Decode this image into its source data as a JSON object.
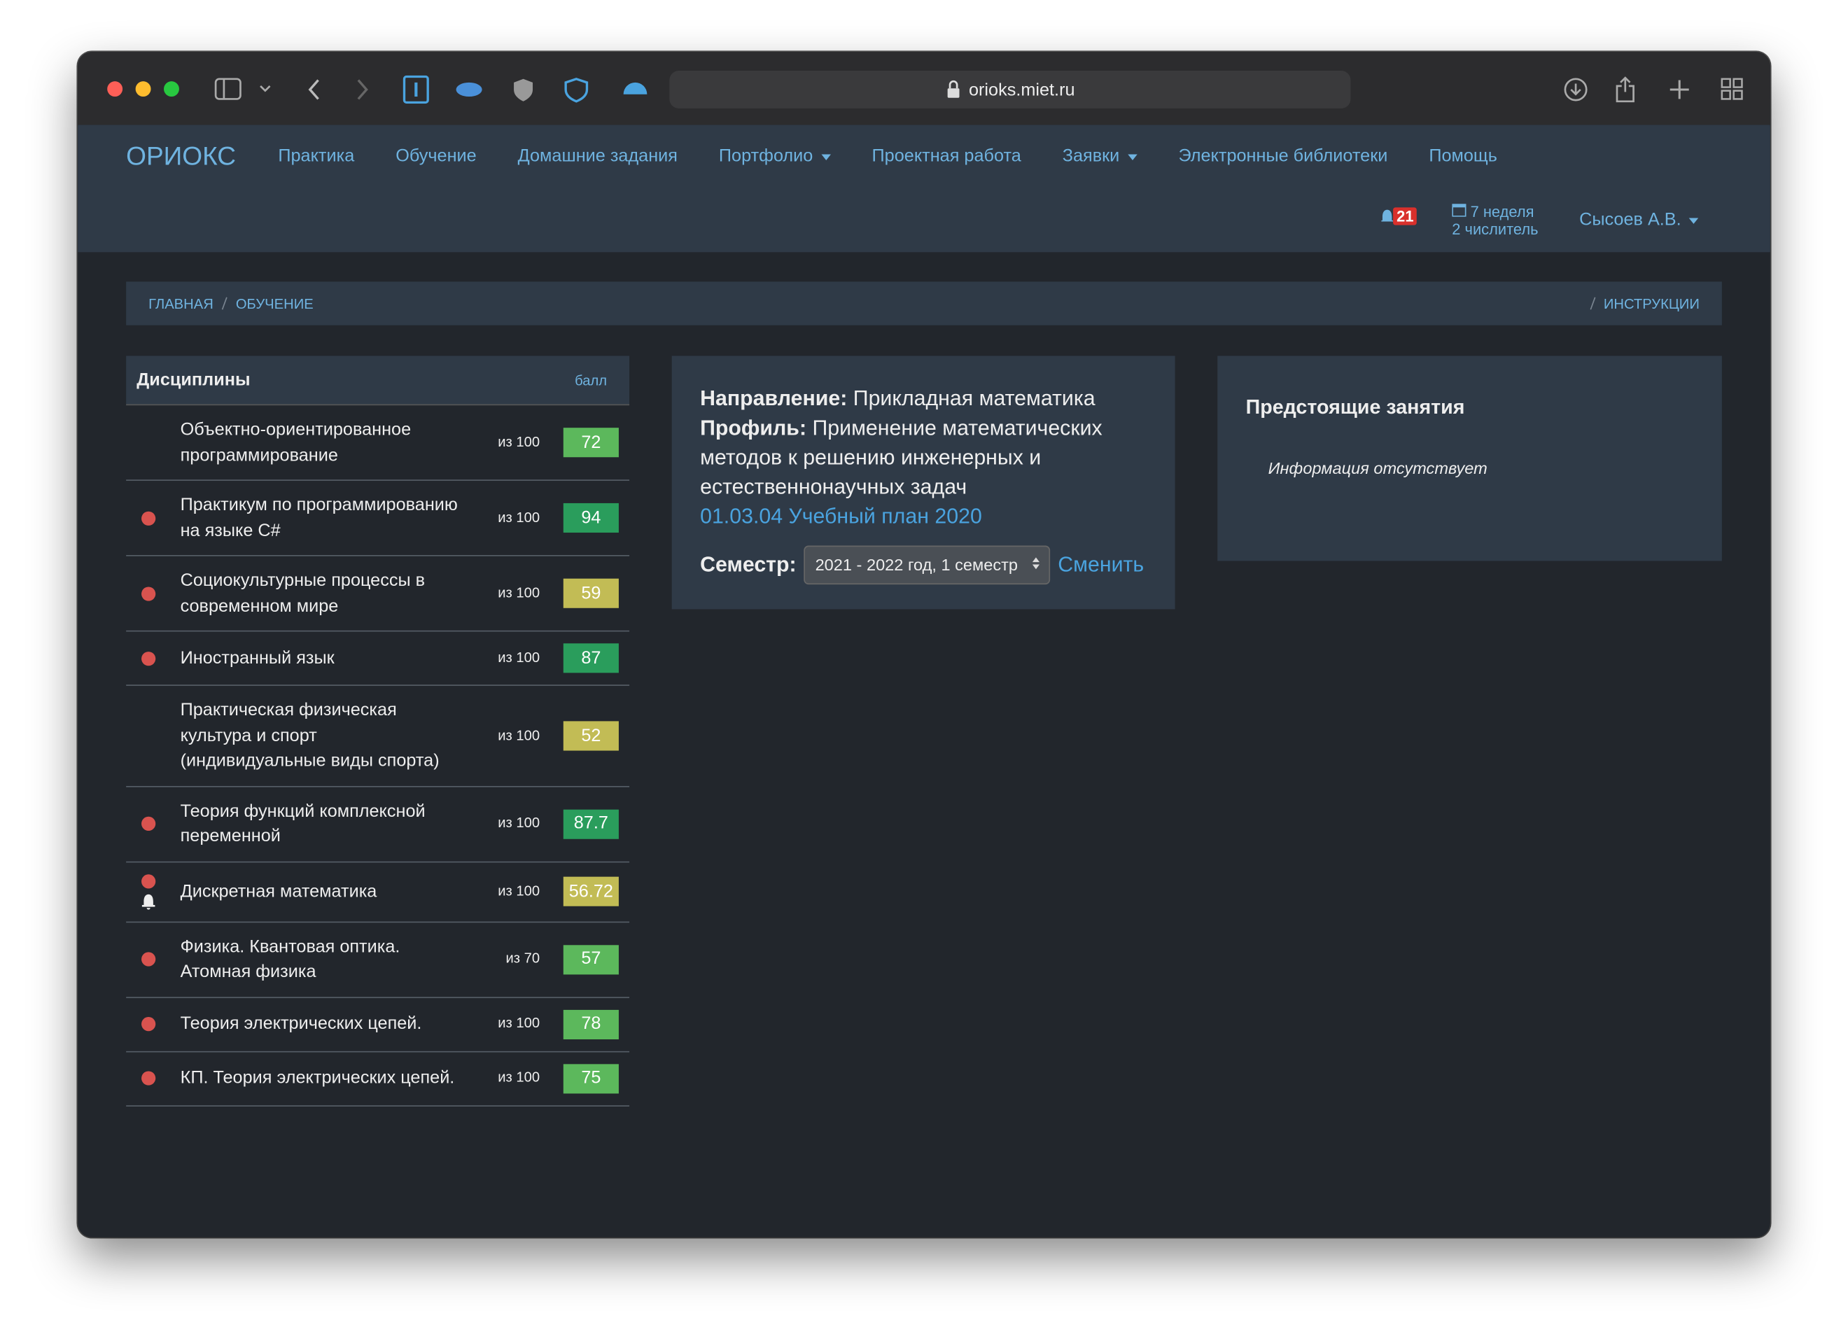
{
  "browser": {
    "url": "orioks.miet.ru"
  },
  "nav": {
    "brand": "ОРИОКС",
    "items": [
      {
        "label": "Практика",
        "dropdown": false
      },
      {
        "label": "Обучение",
        "dropdown": false
      },
      {
        "label": "Домашние задания",
        "dropdown": false
      },
      {
        "label": "Портфолио",
        "dropdown": true
      },
      {
        "label": "Проектная работа",
        "dropdown": false
      },
      {
        "label": "Заявки",
        "dropdown": true
      },
      {
        "label": "Электронные библиотеки",
        "dropdown": false
      },
      {
        "label": "Помощь",
        "dropdown": false
      }
    ],
    "notifications": 21,
    "week": "7 неделя",
    "week_type": "2 числитель",
    "user": "Сысоев А.В."
  },
  "breadcrumbs": {
    "items": [
      "ГЛАВНАЯ",
      "ОБУЧЕНИЕ"
    ],
    "right": "ИНСТРУКЦИИ"
  },
  "disciplines": {
    "header": "Дисциплины",
    "score_header": "балл",
    "rows": [
      {
        "name": "Объектно-ориентированное программирование",
        "max": "из 100",
        "score": 72,
        "color": "#5cb85c",
        "flag": false,
        "bell": false
      },
      {
        "name": "Практикум по программированию на языке C#",
        "max": "из 100",
        "score": 94,
        "color": "#2a9d5c",
        "flag": true,
        "bell": false
      },
      {
        "name": "Социокультурные процессы в современном мире",
        "max": "из 100",
        "score": 59,
        "color": "#c2bc55",
        "flag": true,
        "bell": false
      },
      {
        "name": "Иностранный язык",
        "max": "из 100",
        "score": 87,
        "color": "#2a9d5c",
        "flag": true,
        "bell": false
      },
      {
        "name": "Практическая физическая культура и спорт (индивидуальные виды спорта)",
        "max": "из 100",
        "score": 52,
        "color": "#c2bc55",
        "flag": false,
        "bell": false
      },
      {
        "name": "Теория функций комплексной переменной",
        "max": "из 100",
        "score": 87.7,
        "color": "#2a9d5c",
        "flag": true,
        "bell": false
      },
      {
        "name": "Дискретная математика",
        "max": "из 100",
        "score": 56.72,
        "color": "#c2bc55",
        "flag": true,
        "bell": true
      },
      {
        "name": "Физика. Квантовая оптика. Атомная физика",
        "max": "из 70",
        "score": 57,
        "color": "#5cb85c",
        "flag": true,
        "bell": false
      },
      {
        "name": "Теория электрических цепей.",
        "max": "из 100",
        "score": 78,
        "color": "#5cb85c",
        "flag": true,
        "bell": false
      },
      {
        "name": "КП. Теория электрических цепей.",
        "max": "из 100",
        "score": 75,
        "color": "#5cb85c",
        "flag": true,
        "bell": false
      }
    ]
  },
  "program": {
    "direction_label": "Направление:",
    "direction": "Прикладная математика",
    "profile_label": "Профиль:",
    "profile": "Применение математических методов к решению инженерных и естественнонаучных задач",
    "plan": "01.03.04 Учебный план 2020",
    "semester_label": "Семестр:",
    "semester": "2021 - 2022 год, 1 семестр",
    "change": "Сменить"
  },
  "upcoming": {
    "title": "Предстоящие занятия",
    "empty": "Информация отсутствует"
  }
}
